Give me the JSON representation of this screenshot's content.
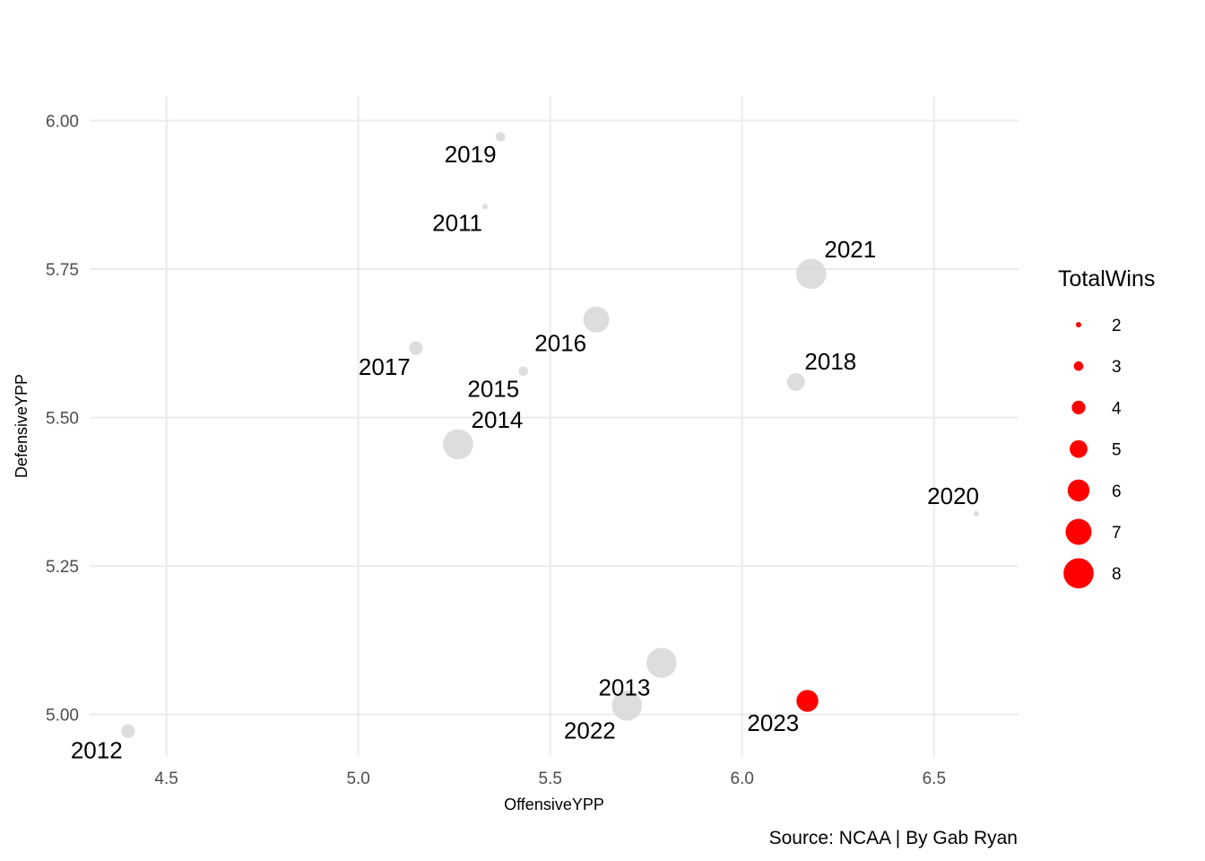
{
  "chart_data": {
    "type": "scatter",
    "title": "",
    "xlabel": "OffensiveYPP",
    "ylabel": "DefensiveYPP",
    "xlim": [
      4.3,
      6.72
    ],
    "ylim": [
      4.93,
      6.04
    ],
    "x_ticks": [
      4.5,
      5.0,
      5.5,
      6.0,
      6.5
    ],
    "x_tick_labels": [
      "4.5",
      "5.0",
      "5.5",
      "6.0",
      "6.5"
    ],
    "y_ticks": [
      5.0,
      5.25,
      5.5,
      5.75,
      6.0
    ],
    "y_tick_labels": [
      "5.00",
      "5.25",
      "5.50",
      "5.75",
      "6.00"
    ],
    "grid": true,
    "size_variable": "TotalWins",
    "legend": {
      "title": "TotalWins",
      "placement": "right",
      "entries": [
        {
          "label": "2",
          "value": 2
        },
        {
          "label": "3",
          "value": 3
        },
        {
          "label": "4",
          "value": 4
        },
        {
          "label": "5",
          "value": 5
        },
        {
          "label": "6",
          "value": 6
        },
        {
          "label": "7",
          "value": 7
        },
        {
          "label": "8",
          "value": 8
        }
      ]
    },
    "caption": "Source: NCAA | By Gab Ryan",
    "colors": {
      "highlight": "#ff0000",
      "default": "#d9d9d9",
      "grid": "#ebebeb"
    },
    "points": [
      {
        "label": "2011",
        "x": 5.33,
        "y": 5.855,
        "wins": 2,
        "highlight": false,
        "label_pos": "below-left"
      },
      {
        "label": "2012",
        "x": 4.4,
        "y": 4.972,
        "wins": 4,
        "highlight": false,
        "label_pos": "below-left"
      },
      {
        "label": "2013",
        "x": 5.79,
        "y": 5.087,
        "wins": 8,
        "highlight": false,
        "label_pos": "below-left"
      },
      {
        "label": "2014",
        "x": 5.26,
        "y": 5.455,
        "wins": 8,
        "highlight": false,
        "label_pos": "above-right"
      },
      {
        "label": "2015",
        "x": 5.43,
        "y": 5.578,
        "wins": 3,
        "highlight": false,
        "label_pos": "below-left"
      },
      {
        "label": "2016",
        "x": 5.62,
        "y": 5.665,
        "wins": 7,
        "highlight": false,
        "label_pos": "below-left"
      },
      {
        "label": "2017",
        "x": 5.15,
        "y": 5.617,
        "wins": 4,
        "highlight": false,
        "label_pos": "below-left"
      },
      {
        "label": "2018",
        "x": 6.14,
        "y": 5.56,
        "wins": 5,
        "highlight": false,
        "label_pos": "above-right"
      },
      {
        "label": "2019",
        "x": 5.37,
        "y": 5.973,
        "wins": 3,
        "highlight": false,
        "label_pos": "below-left"
      },
      {
        "label": "2020",
        "x": 6.61,
        "y": 5.338,
        "wins": 2,
        "highlight": false,
        "label_pos": "above-left"
      },
      {
        "label": "2021",
        "x": 6.18,
        "y": 5.742,
        "wins": 8,
        "highlight": false,
        "label_pos": "above-right"
      },
      {
        "label": "2022",
        "x": 5.7,
        "y": 5.015,
        "wins": 8,
        "highlight": false,
        "label_pos": "below-left"
      },
      {
        "label": "2023",
        "x": 6.17,
        "y": 5.023,
        "wins": 6,
        "highlight": true,
        "label_pos": "below-left"
      }
    ]
  }
}
